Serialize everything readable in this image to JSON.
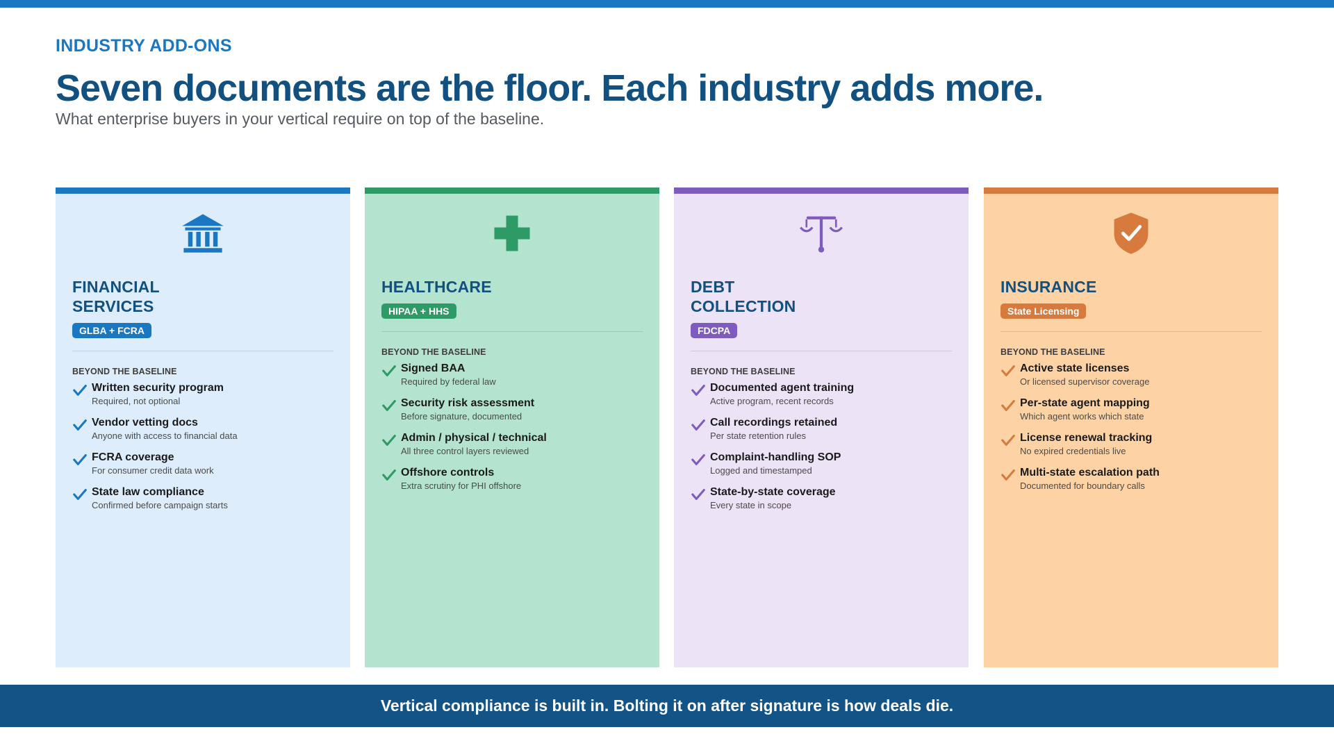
{
  "header": {
    "eyebrow": "INDUSTRY ADD-ONS",
    "headline": "Seven documents are the floor. Each industry adds more.",
    "subhead": "What enterprise buyers in your vertical require on top of the baseline."
  },
  "colors": {
    "accent": "#1a78c2",
    "headline": "#12507f",
    "footer": "#135385"
  },
  "cards": [
    {
      "icon": "bank-icon",
      "title_lines": [
        "FINANCIAL",
        "SERVICES"
      ],
      "badge": "GLBA + FCRA",
      "section_label": "BEYOND THE BASELINE",
      "accent": "#1a78c2",
      "background": "#ddedfc",
      "title_color": "#12507f",
      "items": [
        {
          "title": "Written security program",
          "sub": "Required, not optional"
        },
        {
          "title": "Vendor vetting docs",
          "sub": "Anyone with access to financial data"
        },
        {
          "title": "FCRA coverage",
          "sub": "For consumer credit data work"
        },
        {
          "title": "State law compliance",
          "sub": "Confirmed before campaign starts"
        }
      ]
    },
    {
      "icon": "medical-cross-icon",
      "title_lines": [
        "HEALTHCARE"
      ],
      "badge": "HIPAA + HHS",
      "section_label": "BEYOND THE BASELINE",
      "accent": "#2e9a65",
      "background": "#b4e4cf",
      "title_color": "#12507f",
      "items": [
        {
          "title": "Signed BAA",
          "sub": "Required by federal law"
        },
        {
          "title": "Security risk assessment",
          "sub": "Before signature, documented"
        },
        {
          "title": "Admin / physical / technical",
          "sub": "All three control layers reviewed"
        },
        {
          "title": "Offshore controls",
          "sub": "Extra scrutiny for PHI offshore"
        }
      ]
    },
    {
      "icon": "scales-icon",
      "title_lines": [
        "DEBT",
        "COLLECTION"
      ],
      "badge": "FDCPA",
      "section_label": "BEYOND THE BASELINE",
      "accent": "#7e5cbd",
      "background": "#ece3f7",
      "title_color": "#12507f",
      "items": [
        {
          "title": "Documented agent training",
          "sub": "Active program, recent records"
        },
        {
          "title": "Call recordings retained",
          "sub": "Per state retention rules"
        },
        {
          "title": "Complaint-handling SOP",
          "sub": "Logged and timestamped"
        },
        {
          "title": "State-by-state coverage",
          "sub": "Every state in scope"
        }
      ]
    },
    {
      "icon": "shield-check-icon",
      "title_lines": [
        "INSURANCE"
      ],
      "badge": "State Licensing",
      "section_label": "BEYOND THE BASELINE",
      "accent": "#d67b3d",
      "background": "#fdd3a6",
      "title_color": "#12507f",
      "items": [
        {
          "title": "Active state licenses",
          "sub": "Or licensed supervisor coverage"
        },
        {
          "title": "Per-state agent mapping",
          "sub": "Which agent works which state"
        },
        {
          "title": "License renewal tracking",
          "sub": "No expired credentials live"
        },
        {
          "title": "Multi-state escalation path",
          "sub": "Documented for boundary calls"
        }
      ]
    }
  ],
  "footer": {
    "text": "Vertical compliance is built in. Bolting it on after signature is how deals die."
  }
}
